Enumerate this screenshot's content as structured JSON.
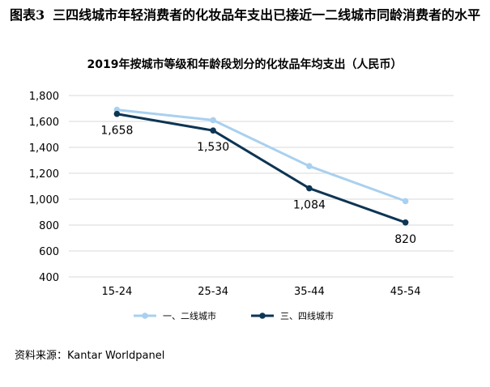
{
  "figure": {
    "number": "图表3",
    "title": "三四线城市年轻消费者的化妆品年支出已接近一二线城市同龄消费者的水平"
  },
  "chart_data": {
    "type": "line",
    "title": "2019年按城市等级和年龄段划分的化妆品年均支出（人民币）",
    "categories": [
      "15-24",
      "25-34",
      "35-44",
      "45-54"
    ],
    "series": [
      {
        "name": "一、二线城市",
        "color": "#a9d0ef",
        "values": [
          1690,
          1610,
          1255,
          985
        ],
        "show_labels": false
      },
      {
        "name": "三、四线城市",
        "color": "#0d3554",
        "values": [
          1658,
          1530,
          1084,
          820
        ],
        "show_labels": true
      }
    ],
    "data_labels": [
      "1,658",
      "1,530",
      "1,084",
      "820"
    ],
    "ylim": [
      400,
      1800
    ],
    "yticks": [
      400,
      600,
      800,
      1000,
      1200,
      1400,
      1600,
      1800
    ],
    "ytick_labels": [
      "400",
      "600",
      "800",
      "1,000",
      "1,200",
      "1,400",
      "1,600",
      "1,800"
    ],
    "grid": true,
    "legend_position": "bottom"
  },
  "source": "资料来源：Kantar Worldpanel"
}
